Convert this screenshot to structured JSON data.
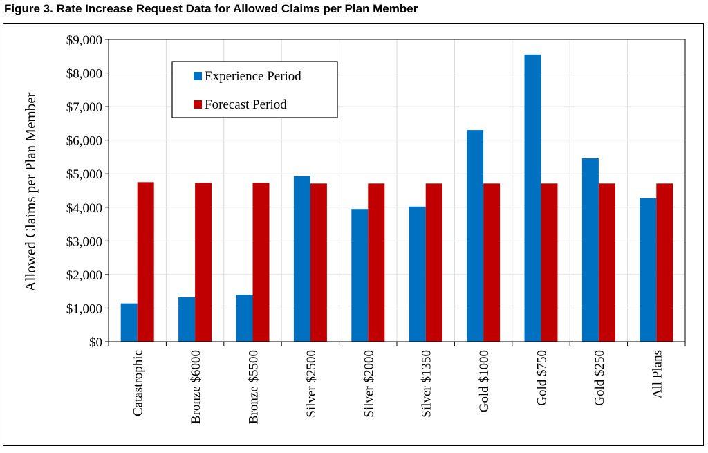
{
  "figure_title": "Figure 3.  Rate Increase Request Data for Allowed Claims per Plan Member",
  "colors": {
    "experience": "#0070c0",
    "forecast": "#c00000",
    "grid": "#d9d9d9",
    "axis": "#000000"
  },
  "chart_data": {
    "type": "bar",
    "title": "",
    "xlabel": "",
    "ylabel": "Allowed Claims per Plan Member",
    "ylim": [
      0,
      9000
    ],
    "yticks": [
      "$0",
      "$1,000",
      "$2,000",
      "$3,000",
      "$4,000",
      "$5,000",
      "$6,000",
      "$7,000",
      "$8,000",
      "$9,000"
    ],
    "categories": [
      "Catastrophic",
      "Bronze $6000",
      "Bronze $5500",
      "Silver $2500",
      "Silver $2000",
      "Silver $1350",
      "Gold $1000",
      "Gold $750",
      "Gold $250",
      "All Plans"
    ],
    "series": [
      {
        "name": "Experience Period",
        "values": [
          1140,
          1320,
          1400,
          4930,
          3950,
          4020,
          6300,
          8550,
          5460,
          4270
        ]
      },
      {
        "name": "Forecast Period",
        "values": [
          4750,
          4730,
          4730,
          4710,
          4710,
          4710,
          4710,
          4710,
          4710,
          4710
        ]
      }
    ],
    "grid": true,
    "legend_position": "top-left"
  }
}
